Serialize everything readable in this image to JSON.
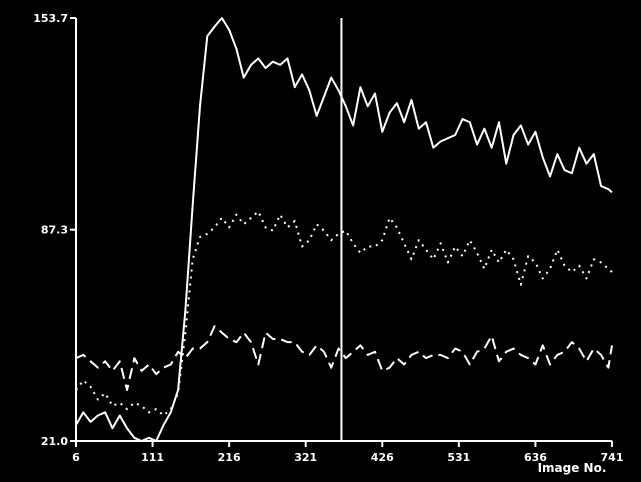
{
  "chart_data": {
    "type": "line",
    "xlabel": "Image No.",
    "ylabel": "",
    "xlim": [
      6,
      741
    ],
    "ylim": [
      21.0,
      153.7
    ],
    "x_ticks": [
      "6",
      "111",
      "216",
      "321",
      "426",
      "531",
      "636",
      "741"
    ],
    "y_ticks": [
      "21.0",
      "87.3",
      "153.7"
    ],
    "background_color": "#000000",
    "line_color": "#ffffff",
    "grid": false,
    "legend": false,
    "marker_line": {
      "x": 370
    },
    "series": [
      {
        "style": "solid",
        "x": [
          6,
          16,
          26,
          36,
          46,
          56,
          66,
          76,
          86,
          96,
          106,
          116,
          126,
          136,
          146,
          156,
          166,
          176,
          186,
          196,
          206,
          216,
          226,
          236,
          246,
          256,
          266,
          276,
          286,
          296,
          306,
          316,
          326,
          336,
          346,
          356,
          366,
          376,
          386,
          396,
          406,
          416,
          426,
          436,
          446,
          456,
          466,
          476,
          486,
          496,
          506,
          516,
          526,
          536,
          546,
          556,
          566,
          576,
          586,
          596,
          606,
          616,
          626,
          636,
          646,
          656,
          666,
          676,
          686,
          696,
          706,
          716,
          726,
          736,
          741
        ],
        "y": [
          26,
          30,
          27,
          29,
          30,
          25,
          29,
          25,
          22,
          21,
          22,
          21,
          26,
          30,
          37,
          62,
          95,
          126,
          148,
          151,
          153.7,
          150,
          144,
          135,
          139,
          141,
          138,
          140,
          139,
          141,
          132,
          136,
          131,
          123,
          129,
          135,
          131,
          126,
          120,
          132,
          126,
          130,
          118,
          124,
          127,
          121,
          128,
          119,
          121,
          113,
          115,
          116,
          117,
          122,
          121,
          114,
          119,
          113,
          121,
          108,
          117,
          120,
          114,
          118,
          110,
          104,
          111,
          106,
          105,
          113,
          108,
          111,
          101,
          100,
          99
        ]
      },
      {
        "style": "dotted",
        "x": [
          6,
          16,
          26,
          36,
          46,
          56,
          66,
          76,
          86,
          96,
          106,
          116,
          126,
          136,
          146,
          156,
          166,
          176,
          186,
          196,
          206,
          216,
          226,
          236,
          246,
          256,
          266,
          276,
          286,
          296,
          306,
          316,
          326,
          336,
          346,
          356,
          366,
          376,
          386,
          396,
          406,
          416,
          426,
          436,
          446,
          456,
          466,
          476,
          486,
          496,
          506,
          516,
          526,
          536,
          546,
          556,
          566,
          576,
          586,
          596,
          606,
          616,
          626,
          636,
          646,
          656,
          666,
          676,
          686,
          696,
          706,
          716,
          726,
          736,
          741
        ],
        "y": [
          37,
          40,
          38,
          34,
          36,
          32,
          33,
          31,
          33,
          32,
          30,
          31,
          29,
          31,
          36,
          55,
          78,
          85,
          86,
          88,
          91,
          88,
          92,
          89,
          91,
          93,
          88,
          87,
          92,
          88,
          90,
          82,
          84,
          89,
          87,
          84,
          86,
          87,
          83,
          80,
          82,
          82,
          84,
          91,
          88,
          83,
          78,
          84,
          81,
          78,
          83,
          77,
          82,
          79,
          84,
          80,
          75,
          81,
          77,
          81,
          78,
          70,
          79,
          77,
          72,
          75,
          81,
          76,
          74,
          76,
          72,
          78,
          77,
          75,
          74
        ]
      },
      {
        "style": "dashed",
        "x": [
          6,
          16,
          26,
          36,
          46,
          56,
          66,
          76,
          86,
          96,
          106,
          116,
          126,
          136,
          146,
          156,
          166,
          176,
          186,
          196,
          206,
          216,
          226,
          236,
          246,
          256,
          266,
          276,
          286,
          296,
          306,
          316,
          326,
          336,
          346,
          356,
          366,
          376,
          386,
          396,
          406,
          416,
          426,
          436,
          446,
          456,
          466,
          476,
          486,
          496,
          506,
          516,
          526,
          536,
          546,
          556,
          566,
          576,
          586,
          596,
          606,
          616,
          626,
          636,
          646,
          656,
          666,
          676,
          686,
          696,
          706,
          716,
          726,
          736,
          741
        ],
        "y": [
          47,
          48,
          46,
          44,
          46,
          43,
          46,
          37,
          47,
          43,
          45,
          42,
          44,
          45,
          49,
          47,
          50,
          50,
          52,
          57,
          55,
          53,
          52,
          55,
          52,
          45,
          55,
          53,
          53,
          52,
          52,
          49,
          48,
          51,
          49,
          44,
          50,
          47,
          49,
          51,
          48,
          49,
          43,
          44,
          47,
          45,
          48,
          49,
          47,
          48,
          48,
          47,
          50,
          49,
          45,
          49,
          50,
          54,
          46,
          49,
          50,
          48,
          47,
          45,
          51,
          45,
          48,
          49,
          52,
          50,
          46,
          50,
          48,
          44,
          51
        ]
      }
    ]
  }
}
